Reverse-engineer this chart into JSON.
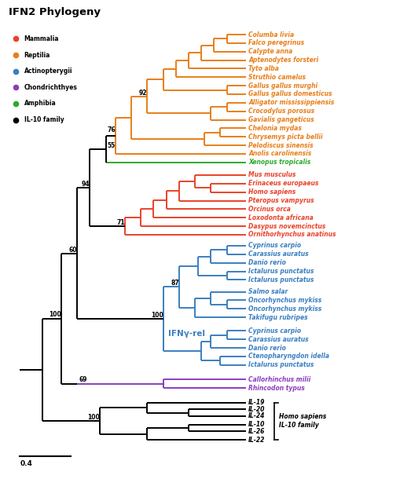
{
  "title": "IFN2 Phylogeny",
  "colors": {
    "Mammalia": "#E8432A",
    "Reptilia": "#E87E1A",
    "Actinopterygii": "#3A7FC1",
    "Chondrichthyes": "#8B3DBF",
    "Amphibia": "#2DAA2D",
    "black": "#000000"
  },
  "legend": [
    {
      "label": "Mammalia",
      "color": "#E8432A"
    },
    {
      "label": "Reptilia",
      "color": "#E87E1A"
    },
    {
      "label": "Actinopterygii",
      "color": "#3A7FC1"
    },
    {
      "label": "Chondrichthyes",
      "color": "#8B3DBF"
    },
    {
      "label": "Amphibia",
      "color": "#2DAA2D"
    },
    {
      "label": "IL-10 family",
      "color": "#000000"
    }
  ],
  "tips_y": {
    "Columba livia": 51.0,
    "Falco peregrinus": 50.0,
    "Calypte anna": 49.0,
    "Aptenodytes forsteri": 48.0,
    "Tyto alba": 47.0,
    "Struthio camelus": 46.0,
    "Gallus gallus murghi": 45.0,
    "Gallus gallus domesticus": 44.0,
    "Alligator mississippiensis": 43.0,
    "Crocodylus porosus": 42.0,
    "Gavialis gangeticus": 41.0,
    "Chelonia mydas": 40.0,
    "Chrysemys picta bellii": 39.0,
    "Pelodiscus sinensis": 38.0,
    "Anolis carolinensis": 37.0,
    "Xenopus tropicalis": 36.0,
    "Mus musculus": 34.5,
    "Erinaceus europaeus": 33.5,
    "Homo sapiens": 32.5,
    "Pteropus vampyrus": 31.5,
    "Orcinus orca": 30.5,
    "Loxodonta africana": 29.5,
    "Dasypus novemcinctus": 28.5,
    "Ornithorhynchus anatinus": 27.5,
    "Cyprinus carpio_1": 26.2,
    "Carassius auratus_1": 25.2,
    "Danio rerio_1": 24.2,
    "Ictalurus punctatus_1a": 23.2,
    "Ictalurus punctatus_1b": 22.2,
    "Salmo salar": 20.8,
    "Oncorhynchus mykiss_1": 19.8,
    "Oncorhynchus mykiss_2": 18.8,
    "Takifugu rubripes": 17.8,
    "Cyprinus carpio_2": 16.2,
    "Carassius auratus_2": 15.2,
    "Danio rerio_2": 14.2,
    "Ctenopharyngdon idella": 13.2,
    "Ictalurus punctatus_2": 12.2,
    "Callorhinchus milii": 10.5,
    "Rhincodon typus": 9.5,
    "IL-19": 7.8,
    "IL-20": 7.0,
    "IL-24": 6.2,
    "IL-10": 5.2,
    "IL-26": 4.4,
    "IL-22": 3.4
  }
}
